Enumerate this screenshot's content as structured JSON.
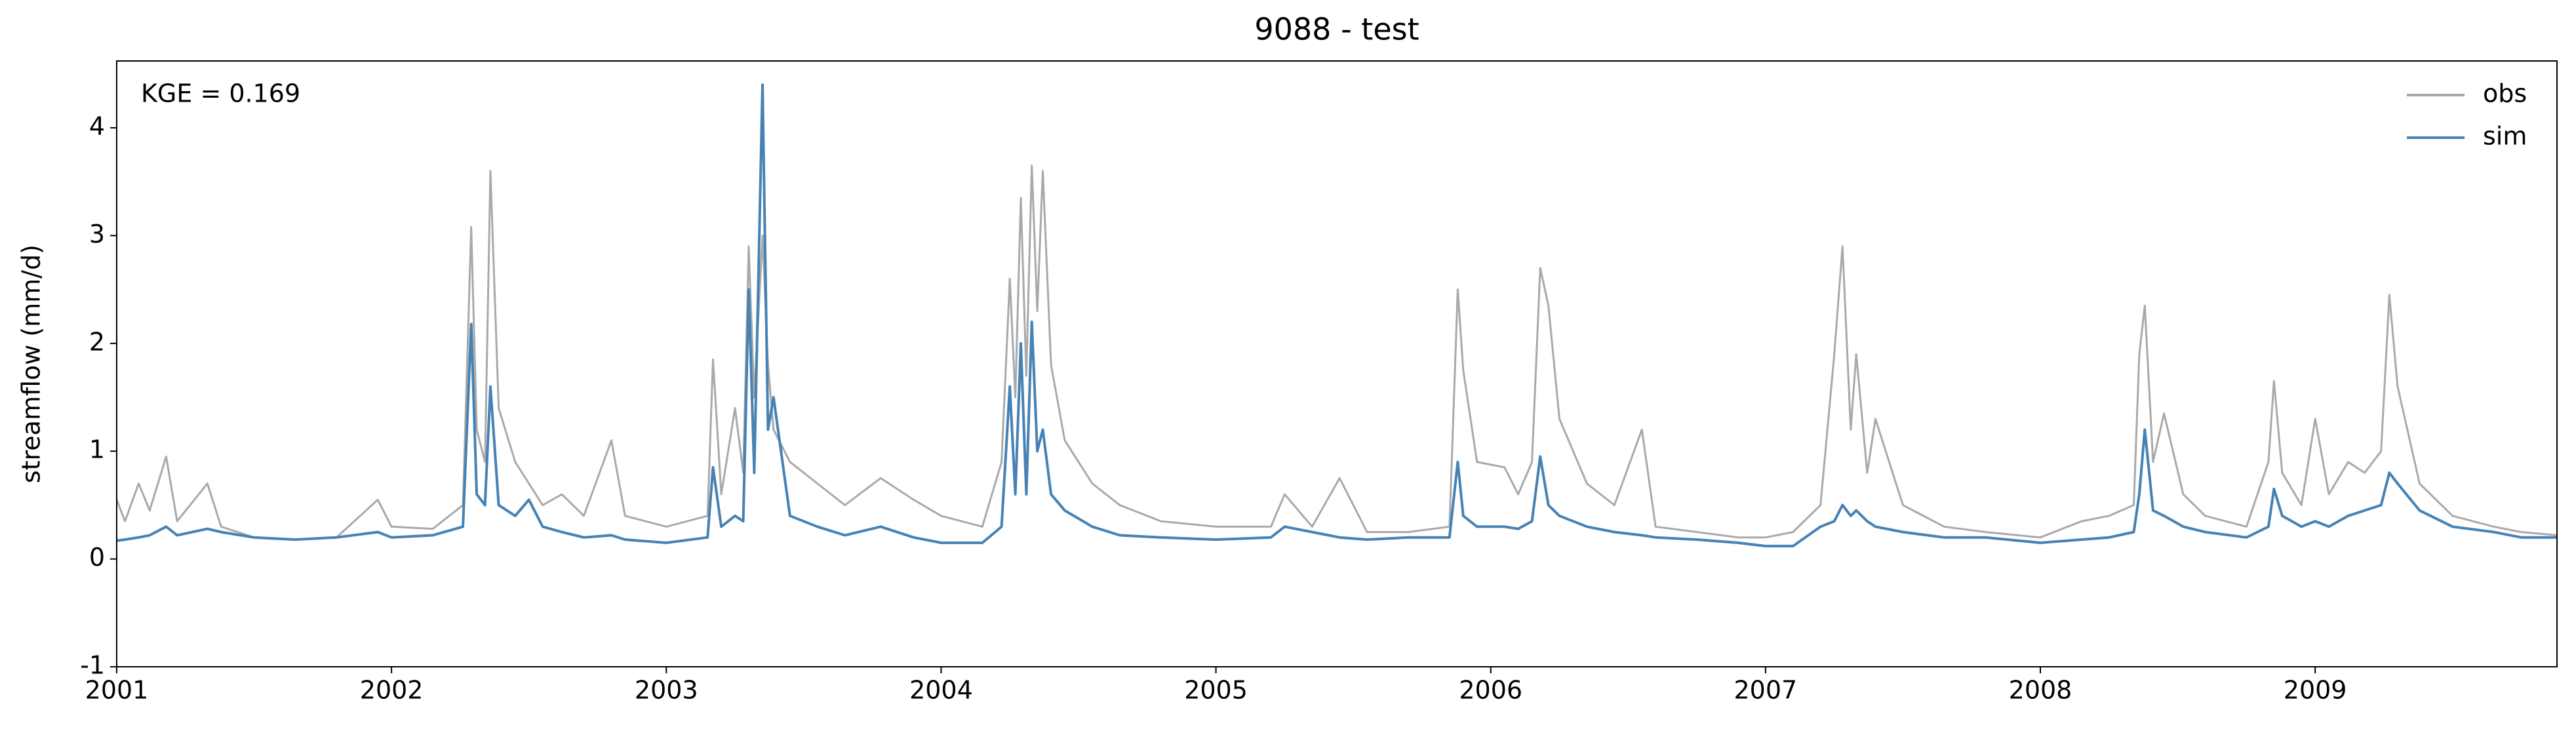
{
  "chart_data": {
    "type": "line",
    "title": "9088 - test",
    "ylabel": "streamflow (mm/d)",
    "annotation": "KGE = 0.169",
    "legend": "upper right",
    "grid": false,
    "xlim": [
      2001,
      2009.88
    ],
    "xticks": [
      2001,
      2002,
      2003,
      2004,
      2005,
      2006,
      2007,
      2008,
      2009
    ],
    "ylim": [
      -1,
      4.62
    ],
    "yticks": [
      -1,
      0,
      1,
      2,
      3,
      4
    ],
    "x": [
      2001.0,
      2001.03,
      2001.08,
      2001.12,
      2001.18,
      2001.22,
      2001.33,
      2001.38,
      2001.5,
      2001.65,
      2001.8,
      2001.95,
      2002.0,
      2002.15,
      2002.26,
      2002.29,
      2002.31,
      2002.34,
      2002.36,
      2002.39,
      2002.45,
      2002.5,
      2002.55,
      2002.62,
      2002.7,
      2002.8,
      2002.85,
      2003.0,
      2003.15,
      2003.17,
      2003.2,
      2003.25,
      2003.28,
      2003.3,
      2003.32,
      2003.35,
      2003.37,
      2003.39,
      2003.45,
      2003.55,
      2003.65,
      2003.78,
      2003.9,
      2004.0,
      2004.15,
      2004.22,
      2004.25,
      2004.27,
      2004.29,
      2004.31,
      2004.33,
      2004.35,
      2004.37,
      2004.4,
      2004.45,
      2004.55,
      2004.65,
      2004.8,
      2005.0,
      2005.2,
      2005.25,
      2005.35,
      2005.45,
      2005.55,
      2005.7,
      2005.85,
      2005.88,
      2005.9,
      2005.95,
      2006.05,
      2006.1,
      2006.15,
      2006.18,
      2006.21,
      2006.25,
      2006.35,
      2006.45,
      2006.55,
      2006.6,
      2006.75,
      2006.9,
      2007.0,
      2007.1,
      2007.2,
      2007.25,
      2007.28,
      2007.31,
      2007.33,
      2007.37,
      2007.4,
      2007.5,
      2007.65,
      2007.8,
      2008.0,
      2008.15,
      2008.25,
      2008.34,
      2008.36,
      2008.38,
      2008.41,
      2008.45,
      2008.52,
      2008.6,
      2008.75,
      2008.83,
      2008.85,
      2008.88,
      2008.95,
      2009.0,
      2009.05,
      2009.12,
      2009.18,
      2009.24,
      2009.27,
      2009.3,
      2009.38,
      2009.5,
      2009.65,
      2009.75,
      2009.88
    ],
    "series": [
      {
        "name": "obs",
        "color": "#a9a9a9",
        "values": [
          0.55,
          0.35,
          0.7,
          0.45,
          0.95,
          0.35,
          0.7,
          0.3,
          0.2,
          0.18,
          0.2,
          0.55,
          0.3,
          0.28,
          0.5,
          3.08,
          1.2,
          0.9,
          3.6,
          1.4,
          0.9,
          0.7,
          0.5,
          0.6,
          0.4,
          1.1,
          0.4,
          0.3,
          0.4,
          1.85,
          0.6,
          1.4,
          0.8,
          2.9,
          1.5,
          3.0,
          1.8,
          1.2,
          0.9,
          0.7,
          0.5,
          0.75,
          0.55,
          0.4,
          0.3,
          0.9,
          2.6,
          1.5,
          3.35,
          1.7,
          3.65,
          2.3,
          3.6,
          1.8,
          1.1,
          0.7,
          0.5,
          0.35,
          0.3,
          0.3,
          0.6,
          0.3,
          0.75,
          0.25,
          0.25,
          0.3,
          2.5,
          1.75,
          0.9,
          0.85,
          0.6,
          0.9,
          2.7,
          2.35,
          1.3,
          0.7,
          0.5,
          1.2,
          0.3,
          0.25,
          0.2,
          0.2,
          0.25,
          0.5,
          1.9,
          2.9,
          1.2,
          1.9,
          0.8,
          1.3,
          0.5,
          0.3,
          0.25,
          0.2,
          0.35,
          0.4,
          0.5,
          1.9,
          2.35,
          0.9,
          1.35,
          0.6,
          0.4,
          0.3,
          0.9,
          1.65,
          0.8,
          0.5,
          1.3,
          0.6,
          0.9,
          0.8,
          1.0,
          2.45,
          1.6,
          0.7,
          0.4,
          0.3,
          0.25,
          0.22
        ]
      },
      {
        "name": "sim",
        "color": "#4682b4",
        "values": [
          0.17,
          0.18,
          0.2,
          0.22,
          0.3,
          0.22,
          0.28,
          0.25,
          0.2,
          0.18,
          0.2,
          0.25,
          0.2,
          0.22,
          0.3,
          2.18,
          0.6,
          0.5,
          1.6,
          0.5,
          0.4,
          0.55,
          0.3,
          0.25,
          0.2,
          0.22,
          0.18,
          0.15,
          0.2,
          0.85,
          0.3,
          0.4,
          0.35,
          2.5,
          0.8,
          4.4,
          1.2,
          1.5,
          0.4,
          0.3,
          0.22,
          0.3,
          0.2,
          0.15,
          0.15,
          0.3,
          1.6,
          0.6,
          2.0,
          0.6,
          2.2,
          1.0,
          1.2,
          0.6,
          0.45,
          0.3,
          0.22,
          0.2,
          0.18,
          0.2,
          0.3,
          0.25,
          0.2,
          0.18,
          0.2,
          0.2,
          0.9,
          0.4,
          0.3,
          0.3,
          0.28,
          0.35,
          0.95,
          0.5,
          0.4,
          0.3,
          0.25,
          0.22,
          0.2,
          0.18,
          0.15,
          0.12,
          0.12,
          0.3,
          0.35,
          0.5,
          0.4,
          0.45,
          0.35,
          0.3,
          0.25,
          0.2,
          0.2,
          0.15,
          0.18,
          0.2,
          0.25,
          0.6,
          1.2,
          0.45,
          0.4,
          0.3,
          0.25,
          0.2,
          0.3,
          0.65,
          0.4,
          0.3,
          0.35,
          0.3,
          0.4,
          0.45,
          0.5,
          0.8,
          0.7,
          0.45,
          0.3,
          0.25,
          0.2,
          0.2
        ]
      }
    ]
  }
}
